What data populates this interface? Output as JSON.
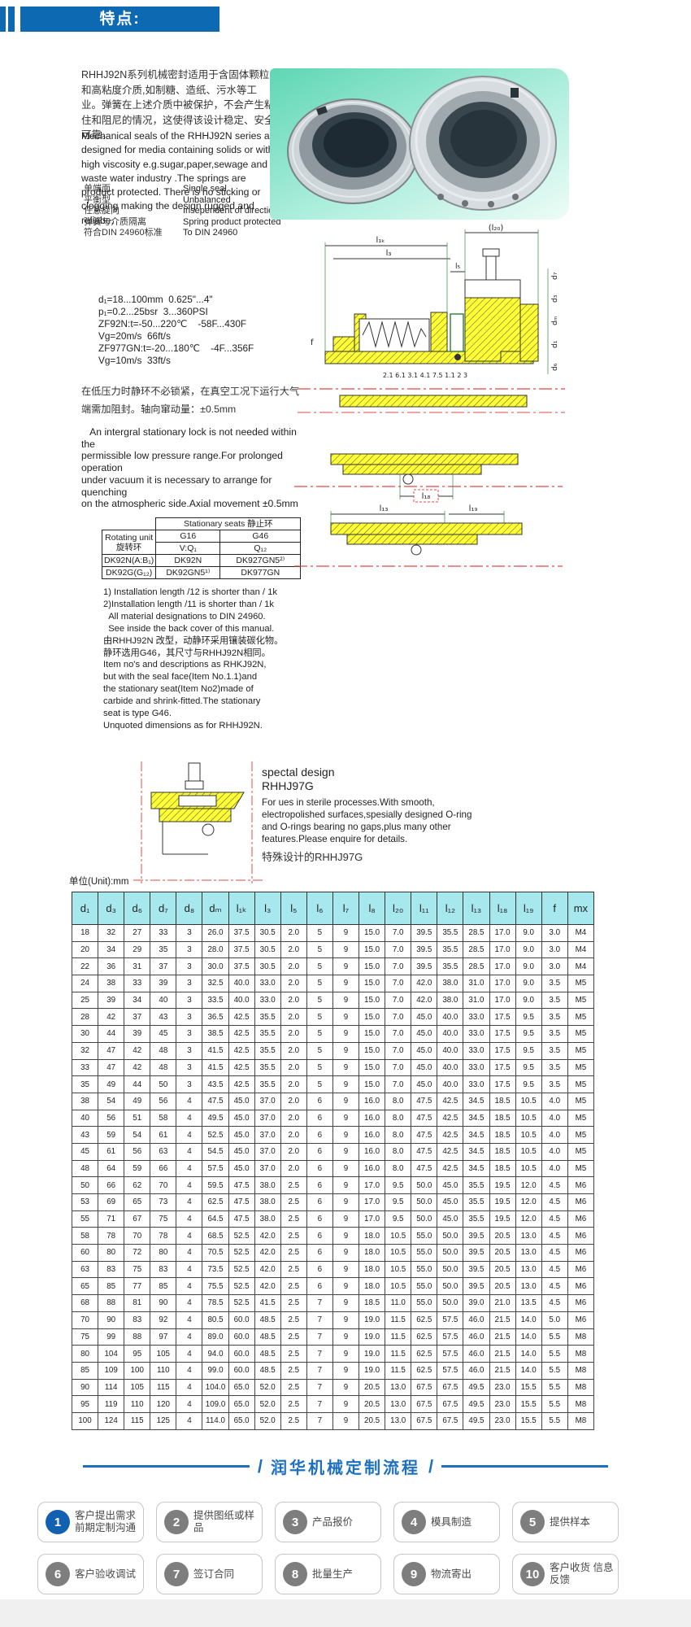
{
  "colors": {
    "accent_blue": "#0e69b3",
    "table_header_cyan": "#a7e7ee",
    "centerline_red": "#e04848",
    "hatch_yellow": "#ffff33",
    "process_blue": "#1d70bf",
    "step_gray": "#7e7e7e"
  },
  "header": {
    "title": "特点:"
  },
  "intro_zh": "RHHJ92N系列机械密封适用于含固体颗粒和高粘度介质,如制糖、造纸、污水等工业。弹簧在上述介质中被保护，不会产生粘住和阻尼的情况，这使得该设计稳定、安全可靠。",
  "intro_en": "Mechanical seals of the RHHJ92N series are designed for media containing solids or with high viscosity e.g.sugar,paper,sewage and waste water industry .The springs are product protected. There is no sticking or clogging making the design rugged and reliabe.",
  "features": [
    {
      "zh": "单端面",
      "en": "Single seal"
    },
    {
      "zh": "平衡型",
      "en": "Unbalanced"
    },
    {
      "zh": "任意旋向",
      "en": "Insependent of direction rotation"
    },
    {
      "zh": "弹簧与介质隔离",
      "en": "Spring product protected"
    },
    {
      "zh": "符合DIN 24960标准",
      "en": "To DIN 24960"
    }
  ],
  "tech_specs": [
    "d₁=18...100mm  0.625\"...4\"",
    "p₁=0.2...25bsr  3...360PSI",
    "ZF92N:t=-50...220℃    -58F...430F",
    "Vg=20m/s  66ft/s",
    "ZF977GN:t=-20...180℃    -4F...356F",
    "Vg=10m/s  33ft/s"
  ],
  "note_zh": "在低压力时静环不必锁紧，在真空工况下运行大气端需加阻封。轴向窜动量：±0.5mm",
  "note_en": "   An intergral stationary lock is not needed within the\npermissible low pressure range.For prolonged operation\nunder vacuum it is necessary to arrange for quenching\non the atmospheric side.Axial movement ±0.5mm",
  "seat_table": {
    "title": "Stationary seats 静止环",
    "rotating_en": "Rotating unit",
    "rotating_zh": "旋转环",
    "g_row": [
      "G16",
      "G46"
    ],
    "q_row": [
      "V:Q₁",
      "Q₁₂"
    ],
    "rows": [
      [
        "DK92N(A:B₁)",
        "DK92N",
        "DK927GN5²⁾"
      ],
      [
        "DK92G(G₁₂)",
        "DK92GN5¹⁾",
        "DK977GN"
      ]
    ]
  },
  "notes_list": [
    "1) Installation length /12 is shorter than / 1k",
    "2)Installation length /11 is shorter than / 1k",
    "  All material designations to DIN 24960.",
    "  See inside the back cover of this manual.",
    "由RHHJ92N 改型，动静环采用镶装碳化物。",
    "静环选用G46，其尺寸与RHHJ92N相同。",
    "Item no's and descriptions as RHKJ92N,",
    "but with the seal face(Item No.1.1)and",
    "the stationary seat(Item No2)made of",
    "carbide and shrink-fitted.The stationary",
    "seat is type G46.",
    "Unquoted dimensions as for RHHJ92N."
  ],
  "drawing1": {
    "dim_l1k": "l₁ₖ",
    "dim_l3": "l₃",
    "dim_l5": "l₅",
    "dim_l20": "(l₂₀)",
    "dim_f": "f",
    "d_labels": [
      "d₇",
      "d₃",
      "dₘ",
      "d₁",
      "d₆"
    ],
    "callouts": "2.1 6.1 3.1 4.1 7.5 1.1 2 3"
  },
  "drawing2": {
    "dim_l18": "l₁₈",
    "dim_l13": "l₁₃",
    "dim_l19": "l₁₉"
  },
  "special": {
    "line1": "spectal design",
    "line2": "RHHJ97G",
    "body": "For ues in sterile processes.With smooth, electropolished surfaces,spesially designed O-ring and O-rings bearing no gaps,plus many other features.Please enquire for details.",
    "zh": "特殊设计的RHHJ97G"
  },
  "unit_label": "单位(Unit):mm",
  "main_table": {
    "headers": [
      "d₁",
      "d₃",
      "d₆",
      "d₇",
      "d₈",
      "dₘ",
      "l₁ₖ",
      "l₃",
      "l₅",
      "l₆",
      "l₇",
      "l₈",
      "l₂₀",
      "l₁₁",
      "l₁₂",
      "l₁₃",
      "l₁₈",
      "l₁₉",
      "f",
      "mx"
    ],
    "rows": [
      [
        "18",
        "32",
        "27",
        "33",
        "3",
        "26.0",
        "37.5",
        "30.5",
        "2.0",
        "5",
        "9",
        "15.0",
        "7.0",
        "39.5",
        "35.5",
        "28.5",
        "17.0",
        "9.0",
        "3.0",
        "M4"
      ],
      [
        "20",
        "34",
        "29",
        "35",
        "3",
        "28.0",
        "37.5",
        "30.5",
        "2.0",
        "5",
        "9",
        "15.0",
        "7.0",
        "39.5",
        "35.5",
        "28.5",
        "17.0",
        "9.0",
        "3.0",
        "M4"
      ],
      [
        "22",
        "36",
        "31",
        "37",
        "3",
        "30.0",
        "37.5",
        "30.5",
        "2.0",
        "5",
        "9",
        "15.0",
        "7.0",
        "39.5",
        "35.5",
        "28.5",
        "17.0",
        "9.0",
        "3.0",
        "M4"
      ],
      [
        "24",
        "38",
        "33",
        "39",
        "3",
        "32.5",
        "40.0",
        "33.0",
        "2.0",
        "5",
        "9",
        "15.0",
        "7.0",
        "42.0",
        "38.0",
        "31.0",
        "17.0",
        "9.0",
        "3.5",
        "M5"
      ],
      [
        "25",
        "39",
        "34",
        "40",
        "3",
        "33.5",
        "40.0",
        "33.0",
        "2.0",
        "5",
        "9",
        "15.0",
        "7.0",
        "42.0",
        "38.0",
        "31.0",
        "17.0",
        "9.0",
        "3.5",
        "M5"
      ],
      [
        "28",
        "42",
        "37",
        "43",
        "3",
        "36.5",
        "42.5",
        "35.5",
        "2.0",
        "5",
        "9",
        "15.0",
        "7.0",
        "45.0",
        "40.0",
        "33.0",
        "17.5",
        "9.5",
        "3.5",
        "M5"
      ],
      [
        "30",
        "44",
        "39",
        "45",
        "3",
        "38.5",
        "42.5",
        "35.5",
        "2.0",
        "5",
        "9",
        "15.0",
        "7.0",
        "45.0",
        "40.0",
        "33.0",
        "17.5",
        "9.5",
        "3.5",
        "M5"
      ],
      [
        "32",
        "47",
        "42",
        "48",
        "3",
        "41.5",
        "42.5",
        "35.5",
        "2.0",
        "5",
        "9",
        "15.0",
        "7.0",
        "45.0",
        "40.0",
        "33.0",
        "17.5",
        "9.5",
        "3.5",
        "M5"
      ],
      [
        "33",
        "47",
        "42",
        "48",
        "3",
        "41.5",
        "42.5",
        "35.5",
        "2.0",
        "5",
        "9",
        "15.0",
        "7.0",
        "45.0",
        "40.0",
        "33.0",
        "17.5",
        "9.5",
        "3.5",
        "M5"
      ],
      [
        "35",
        "49",
        "44",
        "50",
        "3",
        "43.5",
        "42.5",
        "35.5",
        "2.0",
        "5",
        "9",
        "15.0",
        "7.0",
        "45.0",
        "40.0",
        "33.0",
        "17.5",
        "9.5",
        "3.5",
        "M5"
      ],
      [
        "38",
        "54",
        "49",
        "56",
        "4",
        "47.5",
        "45.0",
        "37.0",
        "2.0",
        "6",
        "9",
        "16.0",
        "8.0",
        "47.5",
        "42.5",
        "34.5",
        "18.5",
        "10.5",
        "4.0",
        "M5"
      ],
      [
        "40",
        "56",
        "51",
        "58",
        "4",
        "49.5",
        "45.0",
        "37.0",
        "2.0",
        "6",
        "9",
        "16.0",
        "8.0",
        "47.5",
        "42.5",
        "34.5",
        "18.5",
        "10.5",
        "4.0",
        "M5"
      ],
      [
        "43",
        "59",
        "54",
        "61",
        "4",
        "52.5",
        "45.0",
        "37.0",
        "2.0",
        "6",
        "9",
        "16.0",
        "8.0",
        "47.5",
        "42.5",
        "34.5",
        "18.5",
        "10.5",
        "4.0",
        "M5"
      ],
      [
        "45",
        "61",
        "56",
        "63",
        "4",
        "54.5",
        "45.0",
        "37.0",
        "2.0",
        "6",
        "9",
        "16.0",
        "8.0",
        "47.5",
        "42.5",
        "34.5",
        "18.5",
        "10.5",
        "4.0",
        "M5"
      ],
      [
        "48",
        "64",
        "59",
        "66",
        "4",
        "57.5",
        "45.0",
        "37.0",
        "2.0",
        "6",
        "9",
        "16.0",
        "8.0",
        "47.5",
        "42.5",
        "34.5",
        "18.5",
        "10.5",
        "4.0",
        "M5"
      ],
      [
        "50",
        "66",
        "62",
        "70",
        "4",
        "59.5",
        "47.5",
        "38.0",
        "2.5",
        "6",
        "9",
        "17.0",
        "9.5",
        "50.0",
        "45.0",
        "35.5",
        "19.5",
        "12.0",
        "4.5",
        "M6"
      ],
      [
        "53",
        "69",
        "65",
        "73",
        "4",
        "62.5",
        "47.5",
        "38.0",
        "2.5",
        "6",
        "9",
        "17.0",
        "9.5",
        "50.0",
        "45.0",
        "35.5",
        "19.5",
        "12.0",
        "4.5",
        "M6"
      ],
      [
        "55",
        "71",
        "67",
        "75",
        "4",
        "64.5",
        "47.5",
        "38.0",
        "2.5",
        "6",
        "9",
        "17.0",
        "9.5",
        "50.0",
        "45.0",
        "35.5",
        "19.5",
        "12.0",
        "4.5",
        "M6"
      ],
      [
        "58",
        "78",
        "70",
        "78",
        "4",
        "68.5",
        "52.5",
        "42.0",
        "2.5",
        "6",
        "9",
        "18.0",
        "10.5",
        "55.0",
        "50.0",
        "39.5",
        "20.5",
        "13.0",
        "4.5",
        "M6"
      ],
      [
        "60",
        "80",
        "72",
        "80",
        "4",
        "70.5",
        "52.5",
        "42.0",
        "2.5",
        "6",
        "9",
        "18.0",
        "10.5",
        "55.0",
        "50.0",
        "39.5",
        "20.5",
        "13.0",
        "4.5",
        "M6"
      ],
      [
        "63",
        "83",
        "75",
        "83",
        "4",
        "73.5",
        "52.5",
        "42.0",
        "2.5",
        "6",
        "9",
        "18.0",
        "10.5",
        "55.0",
        "50.0",
        "39.5",
        "20.5",
        "13.0",
        "4.5",
        "M6"
      ],
      [
        "65",
        "85",
        "77",
        "85",
        "4",
        "75.5",
        "52.5",
        "42.0",
        "2.5",
        "6",
        "9",
        "18.0",
        "10.5",
        "55.0",
        "50.0",
        "39.5",
        "20.5",
        "13.0",
        "4.5",
        "M6"
      ],
      [
        "68",
        "88",
        "81",
        "90",
        "4",
        "78.5",
        "52.5",
        "41.5",
        "2.5",
        "7",
        "9",
        "18.5",
        "11.0",
        "55.0",
        "50.0",
        "39.0",
        "21.0",
        "13.5",
        "4.5",
        "M6"
      ],
      [
        "70",
        "90",
        "83",
        "92",
        "4",
        "80.5",
        "60.0",
        "48.5",
        "2.5",
        "7",
        "9",
        "19.0",
        "11.5",
        "62.5",
        "57.5",
        "46.0",
        "21.5",
        "14.0",
        "5.0",
        "M6"
      ],
      [
        "75",
        "99",
        "88",
        "97",
        "4",
        "89.0",
        "60.0",
        "48.5",
        "2.5",
        "7",
        "9",
        "19.0",
        "11.5",
        "62.5",
        "57.5",
        "46.0",
        "21.5",
        "14.0",
        "5.5",
        "M8"
      ],
      [
        "80",
        "104",
        "95",
        "105",
        "4",
        "94.0",
        "60.0",
        "48.5",
        "2.5",
        "7",
        "9",
        "19.0",
        "11.5",
        "62.5",
        "57.5",
        "46.0",
        "21.5",
        "14.0",
        "5.5",
        "M8"
      ],
      [
        "85",
        "109",
        "100",
        "110",
        "4",
        "99.0",
        "60.0",
        "48.5",
        "2.5",
        "7",
        "9",
        "19.0",
        "11.5",
        "62.5",
        "57.5",
        "46.0",
        "21.5",
        "14.0",
        "5.5",
        "M8"
      ],
      [
        "90",
        "114",
        "105",
        "115",
        "4",
        "104.0",
        "65.0",
        "52.0",
        "2.5",
        "7",
        "9",
        "20.5",
        "13.0",
        "67.5",
        "67.5",
        "49.5",
        "23.0",
        "15.5",
        "5.5",
        "M8"
      ],
      [
        "95",
        "119",
        "110",
        "120",
        "4",
        "109.0",
        "65.0",
        "52.0",
        "2.5",
        "7",
        "9",
        "20.5",
        "13.0",
        "67.5",
        "67.5",
        "49.5",
        "23.0",
        "15.5",
        "5.5",
        "M8"
      ],
      [
        "100",
        "124",
        "115",
        "125",
        "4",
        "114.0",
        "65.0",
        "52.0",
        "2.5",
        "7",
        "9",
        "20.5",
        "13.0",
        "67.5",
        "67.5",
        "49.5",
        "23.0",
        "15.5",
        "5.5",
        "M8"
      ]
    ]
  },
  "process": {
    "title": "润华机械定制流程",
    "slash": "/",
    "steps": [
      {
        "num": "1",
        "label": "客户提出需求 前期定制沟通",
        "accent": true
      },
      {
        "num": "2",
        "label": "提供图纸或样品"
      },
      {
        "num": "3",
        "label": "产品报价"
      },
      {
        "num": "4",
        "label": "模具制造"
      },
      {
        "num": "5",
        "label": "提供样本"
      },
      {
        "num": "6",
        "label": "客户验收调试"
      },
      {
        "num": "7",
        "label": "签订合同"
      },
      {
        "num": "8",
        "label": "批量生产"
      },
      {
        "num": "9",
        "label": "物流寄出"
      },
      {
        "num": "10",
        "label": "客户收货 信息反馈"
      }
    ]
  }
}
